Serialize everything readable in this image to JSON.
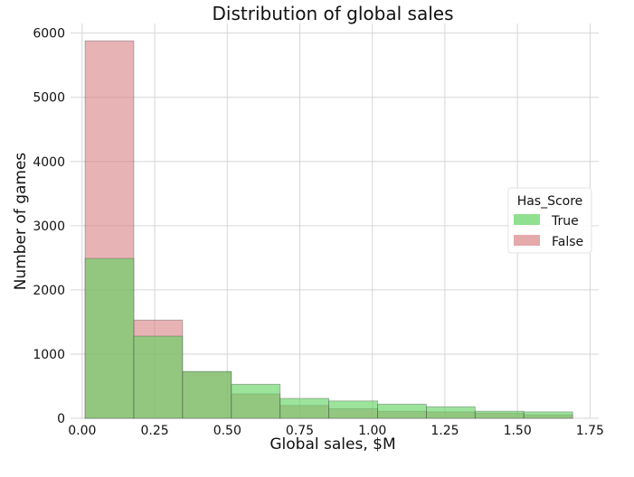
{
  "chart_data": {
    "type": "bar",
    "title": "Distribution of global sales",
    "xlabel": "Global sales, $M",
    "ylabel": "Number of games",
    "xlim": [
      -0.04,
      1.78
    ],
    "ylim": [
      0,
      6150
    ],
    "xticks": [
      0.0,
      0.25,
      0.5,
      0.75,
      1.0,
      1.25,
      1.5,
      1.75
    ],
    "xtick_labels": [
      "0.00",
      "0.25",
      "0.50",
      "0.75",
      "1.00",
      "1.25",
      "1.50",
      "1.75"
    ],
    "yticks": [
      0,
      1000,
      2000,
      3000,
      4000,
      5000,
      6000
    ],
    "ytick_labels": [
      "0",
      "1000",
      "2000",
      "3000",
      "4000",
      "5000",
      "6000"
    ],
    "grid": true,
    "legend": {
      "title": "Has_Score",
      "placement": "center-right"
    },
    "bin_edges": [
      0.01,
      0.178,
      0.346,
      0.514,
      0.682,
      0.85,
      1.018,
      1.186,
      1.354,
      1.522,
      1.69
    ],
    "series": [
      {
        "name": "False",
        "color": "#d98487",
        "values": [
          5880,
          1530,
          720,
          380,
          200,
          150,
          110,
          100,
          80,
          55
        ]
      },
      {
        "name": "True",
        "color": "#5fd35f",
        "values": [
          2490,
          1280,
          730,
          530,
          310,
          270,
          220,
          180,
          110,
          100
        ]
      }
    ],
    "legend_order": [
      "True",
      "False"
    ],
    "overlap_color": "#ab9774"
  }
}
